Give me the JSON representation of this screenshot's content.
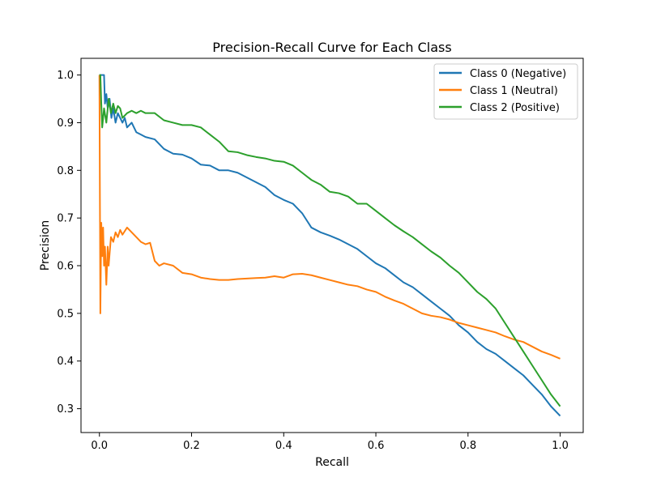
{
  "chart_data": {
    "type": "line",
    "title": "Precision-Recall Curve for Each Class",
    "xlabel": "Recall",
    "ylabel": "Precision",
    "xlim": [
      -0.04,
      1.05
    ],
    "ylim": [
      0.25,
      1.035
    ],
    "xticks": [
      0.0,
      0.2,
      0.4,
      0.6,
      0.8,
      1.0
    ],
    "xtick_labels": [
      "0.0",
      "0.2",
      "0.4",
      "0.6",
      "0.8",
      "1.0"
    ],
    "yticks": [
      0.3,
      0.4,
      0.5,
      0.6,
      0.7,
      0.8,
      0.9,
      1.0
    ],
    "ytick_labels": [
      "0.3",
      "0.4",
      "0.5",
      "0.6",
      "0.7",
      "0.8",
      "0.9",
      "1.0"
    ],
    "grid": false,
    "legend_position": "top-right",
    "series": [
      {
        "name": "Class 0 (Negative)",
        "color": "#1f77b4",
        "x": [
          0.0,
          0.003,
          0.006,
          0.01,
          0.012,
          0.015,
          0.018,
          0.022,
          0.026,
          0.03,
          0.035,
          0.04,
          0.045,
          0.05,
          0.055,
          0.06,
          0.07,
          0.08,
          0.09,
          0.1,
          0.12,
          0.14,
          0.16,
          0.18,
          0.2,
          0.22,
          0.24,
          0.26,
          0.28,
          0.3,
          0.32,
          0.34,
          0.36,
          0.38,
          0.4,
          0.42,
          0.44,
          0.46,
          0.48,
          0.5,
          0.52,
          0.54,
          0.56,
          0.58,
          0.6,
          0.62,
          0.64,
          0.66,
          0.68,
          0.7,
          0.72,
          0.74,
          0.76,
          0.78,
          0.8,
          0.82,
          0.84,
          0.86,
          0.88,
          0.9,
          0.92,
          0.94,
          0.96,
          0.98,
          1.0
        ],
        "y": [
          1.0,
          1.0,
          1.0,
          1.0,
          0.94,
          0.96,
          0.93,
          0.95,
          0.91,
          0.93,
          0.9,
          0.92,
          0.91,
          0.9,
          0.91,
          0.89,
          0.9,
          0.88,
          0.875,
          0.87,
          0.865,
          0.845,
          0.835,
          0.833,
          0.825,
          0.812,
          0.81,
          0.8,
          0.8,
          0.795,
          0.785,
          0.775,
          0.765,
          0.748,
          0.738,
          0.73,
          0.71,
          0.68,
          0.67,
          0.663,
          0.655,
          0.645,
          0.635,
          0.62,
          0.605,
          0.595,
          0.58,
          0.565,
          0.555,
          0.54,
          0.525,
          0.51,
          0.495,
          0.475,
          0.46,
          0.44,
          0.425,
          0.415,
          0.4,
          0.385,
          0.37,
          0.35,
          0.33,
          0.305,
          0.285
        ]
      },
      {
        "name": "Class 1 (Neutral)",
        "color": "#ff7f0e",
        "x": [
          0.0,
          0.002,
          0.004,
          0.006,
          0.008,
          0.01,
          0.012,
          0.015,
          0.018,
          0.02,
          0.025,
          0.03,
          0.035,
          0.04,
          0.045,
          0.05,
          0.06,
          0.07,
          0.08,
          0.09,
          0.1,
          0.11,
          0.12,
          0.13,
          0.14,
          0.16,
          0.18,
          0.2,
          0.22,
          0.24,
          0.26,
          0.28,
          0.3,
          0.32,
          0.34,
          0.36,
          0.38,
          0.4,
          0.42,
          0.44,
          0.46,
          0.48,
          0.5,
          0.52,
          0.54,
          0.56,
          0.58,
          0.6,
          0.62,
          0.64,
          0.66,
          0.68,
          0.7,
          0.72,
          0.74,
          0.76,
          0.78,
          0.8,
          0.82,
          0.84,
          0.86,
          0.88,
          0.9,
          0.92,
          0.94,
          0.96,
          0.98,
          1.0
        ],
        "y": [
          1.0,
          0.5,
          0.69,
          0.62,
          0.68,
          0.6,
          0.64,
          0.56,
          0.64,
          0.6,
          0.66,
          0.65,
          0.67,
          0.66,
          0.675,
          0.665,
          0.68,
          0.67,
          0.66,
          0.65,
          0.645,
          0.648,
          0.61,
          0.6,
          0.605,
          0.6,
          0.585,
          0.582,
          0.575,
          0.572,
          0.57,
          0.57,
          0.572,
          0.573,
          0.574,
          0.575,
          0.578,
          0.575,
          0.582,
          0.583,
          0.58,
          0.575,
          0.57,
          0.565,
          0.56,
          0.557,
          0.55,
          0.545,
          0.535,
          0.527,
          0.52,
          0.51,
          0.5,
          0.495,
          0.492,
          0.487,
          0.48,
          0.475,
          0.47,
          0.465,
          0.46,
          0.452,
          0.445,
          0.44,
          0.43,
          0.42,
          0.413,
          0.405
        ]
      },
      {
        "name": "Class 2 (Positive)",
        "color": "#2ca02c",
        "x": [
          0.0,
          0.002,
          0.004,
          0.006,
          0.01,
          0.015,
          0.02,
          0.025,
          0.03,
          0.035,
          0.04,
          0.045,
          0.05,
          0.06,
          0.07,
          0.08,
          0.09,
          0.1,
          0.12,
          0.14,
          0.16,
          0.18,
          0.2,
          0.22,
          0.24,
          0.26,
          0.28,
          0.3,
          0.32,
          0.34,
          0.36,
          0.38,
          0.4,
          0.42,
          0.44,
          0.46,
          0.48,
          0.5,
          0.52,
          0.54,
          0.56,
          0.58,
          0.6,
          0.62,
          0.64,
          0.66,
          0.68,
          0.7,
          0.72,
          0.74,
          0.76,
          0.78,
          0.8,
          0.82,
          0.84,
          0.86,
          0.88,
          0.9,
          0.92,
          0.94,
          0.96,
          0.98,
          1.0
        ],
        "y": [
          1.0,
          1.0,
          0.94,
          0.89,
          0.93,
          0.9,
          0.95,
          0.92,
          0.94,
          0.92,
          0.935,
          0.93,
          0.91,
          0.92,
          0.925,
          0.92,
          0.925,
          0.92,
          0.92,
          0.905,
          0.9,
          0.895,
          0.895,
          0.89,
          0.875,
          0.86,
          0.84,
          0.838,
          0.832,
          0.828,
          0.825,
          0.82,
          0.818,
          0.81,
          0.795,
          0.78,
          0.77,
          0.755,
          0.752,
          0.745,
          0.73,
          0.73,
          0.715,
          0.7,
          0.685,
          0.672,
          0.66,
          0.645,
          0.63,
          0.617,
          0.6,
          0.585,
          0.565,
          0.545,
          0.53,
          0.51,
          0.48,
          0.45,
          0.42,
          0.39,
          0.36,
          0.33,
          0.305
        ]
      }
    ]
  }
}
